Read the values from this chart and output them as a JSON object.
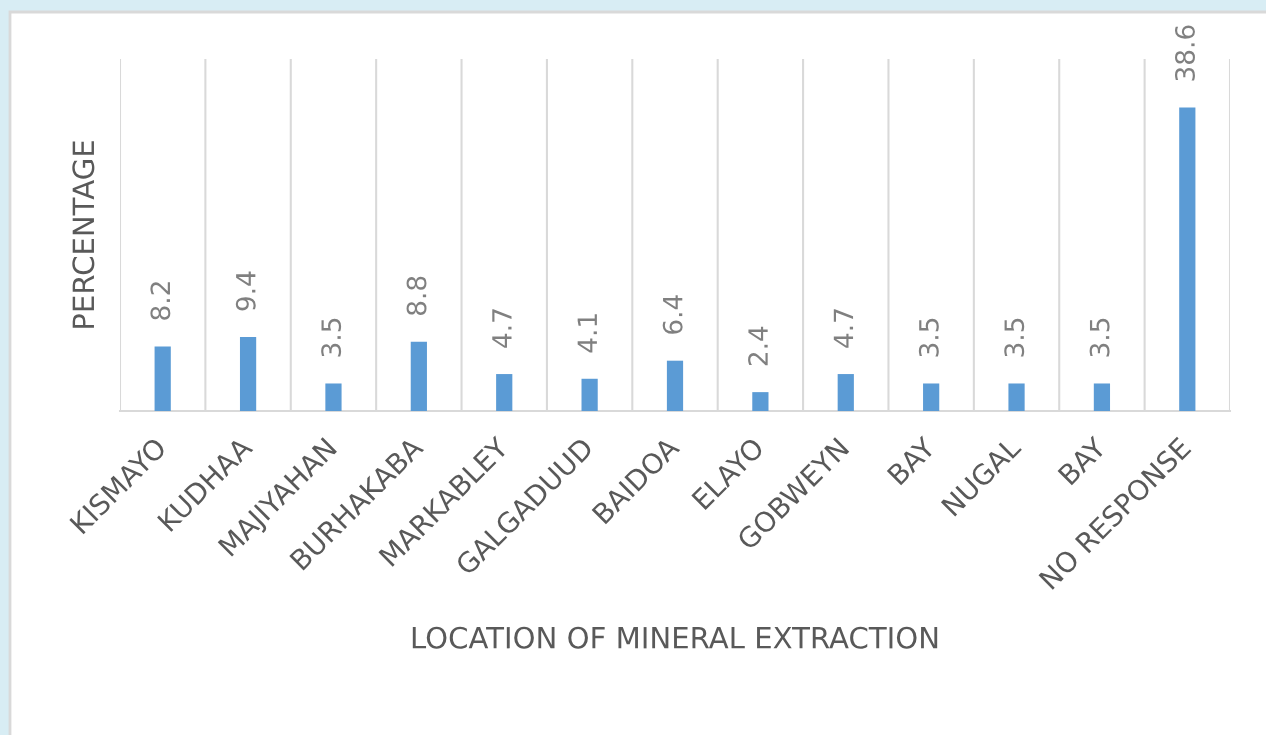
{
  "chart_data": {
    "type": "bar",
    "xlabel": "LOCATION OF MINERAL EXTRACTION",
    "ylabel": "PERCENTAGE",
    "categories": [
      "KISMAYO",
      "KUDHAA",
      "MAJIYAHAN",
      "BURHAKABA",
      "MARKABLEY",
      "GALGADUUD",
      "BAIDOA",
      "ELAYO",
      "GOBWEYN",
      "BAY",
      "NUGAL",
      "BAY",
      "NO RESPONSE"
    ],
    "values": [
      8.2,
      9.4,
      3.5,
      8.8,
      4.7,
      4.1,
      6.4,
      2.4,
      4.7,
      3.5,
      3.5,
      3.5,
      38.6
    ],
    "color": "#5b9bd5",
    "data_labels": true,
    "grid": "x",
    "tick_labels": "x"
  }
}
